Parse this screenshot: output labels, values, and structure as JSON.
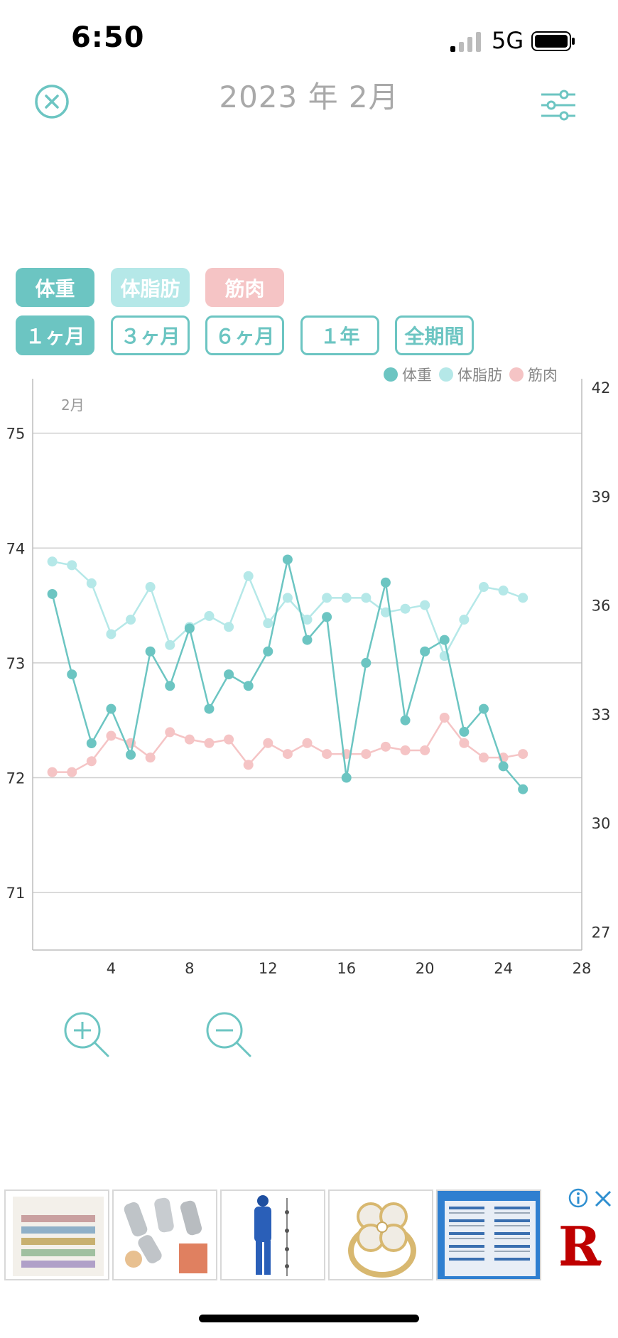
{
  "status_bar": {
    "time": "6:50",
    "network": "5G"
  },
  "header": {
    "title": "2023 年 2月"
  },
  "metric_buttons": [
    {
      "label": "体重",
      "color": "#6cc5c2"
    },
    {
      "label": "体脂肪",
      "color": "#b5e8e8"
    },
    {
      "label": "筋肉",
      "color": "#f5c4c5"
    }
  ],
  "period_buttons": [
    {
      "label": "１ヶ月",
      "active": true
    },
    {
      "label": "３ヶ月",
      "active": false
    },
    {
      "label": "６ヶ月",
      "active": false
    },
    {
      "label": "１年",
      "active": false
    },
    {
      "label": "全期間",
      "active": false
    }
  ],
  "legend": [
    {
      "label": "体重",
      "color": "#6cc5c2"
    },
    {
      "label": "体脂肪",
      "color": "#b5e8e8"
    },
    {
      "label": "筋肉",
      "color": "#f5c4c5"
    }
  ],
  "chart_data": {
    "type": "line",
    "month_label": "2月",
    "x_ticks": [
      4,
      8,
      12,
      16,
      20,
      24,
      28
    ],
    "xlim": [
      0,
      28
    ],
    "left_axis": {
      "ylim": [
        70.5,
        75.4
      ],
      "ticks": [
        75,
        74,
        73,
        72,
        71
      ]
    },
    "right_axis": {
      "ylim": [
        26.5,
        42
      ],
      "ticks": [
        42,
        39,
        36,
        33,
        30,
        27
      ]
    },
    "grid": true,
    "series": [
      {
        "name": "体重",
        "axis": "left",
        "color": "#6cc5c2",
        "x": [
          1,
          2,
          3,
          4,
          5,
          6,
          7,
          8,
          9,
          10,
          11,
          12,
          13,
          14,
          15,
          16,
          17,
          18,
          19,
          20,
          21,
          22,
          23,
          24,
          25
        ],
        "values": [
          73.6,
          72.9,
          72.3,
          72.6,
          72.2,
          73.1,
          72.8,
          73.3,
          72.6,
          72.9,
          72.8,
          73.1,
          73.9,
          73.2,
          73.4,
          72.0,
          73.0,
          73.7,
          72.5,
          73.1,
          73.2,
          72.4,
          72.6,
          72.1,
          71.9
        ]
      },
      {
        "name": "体脂肪",
        "axis": "right",
        "color": "#b5e8e8",
        "x": [
          1,
          2,
          3,
          4,
          5,
          6,
          7,
          8,
          9,
          10,
          11,
          12,
          13,
          14,
          15,
          16,
          17,
          18,
          19,
          20,
          21,
          22,
          23,
          24,
          25
        ],
        "values": [
          37.2,
          37.1,
          36.6,
          35.2,
          35.6,
          36.5,
          34.9,
          35.4,
          35.7,
          35.4,
          36.8,
          35.5,
          36.2,
          35.6,
          36.2,
          36.2,
          36.2,
          35.8,
          35.9,
          36.0,
          34.6,
          35.6,
          36.5,
          36.4,
          36.2
        ]
      },
      {
        "name": "筋肉",
        "axis": "right",
        "color": "#f5c4c5",
        "x": [
          1,
          2,
          3,
          4,
          5,
          6,
          7,
          8,
          9,
          10,
          11,
          12,
          13,
          14,
          15,
          16,
          17,
          18,
          19,
          20,
          21,
          22,
          23,
          24,
          25
        ],
        "values": [
          31.4,
          31.4,
          31.7,
          32.4,
          32.2,
          31.8,
          32.5,
          32.3,
          32.2,
          32.3,
          31.6,
          32.2,
          31.9,
          32.2,
          31.9,
          31.9,
          31.9,
          32.1,
          32.0,
          32.0,
          32.9,
          32.2,
          31.8,
          31.8,
          31.9
        ]
      }
    ]
  },
  "zoom": {
    "in_icon": "zoom-in-icon",
    "out_icon": "zoom-out-icon"
  },
  "ad": {
    "brand_mark": "R"
  }
}
